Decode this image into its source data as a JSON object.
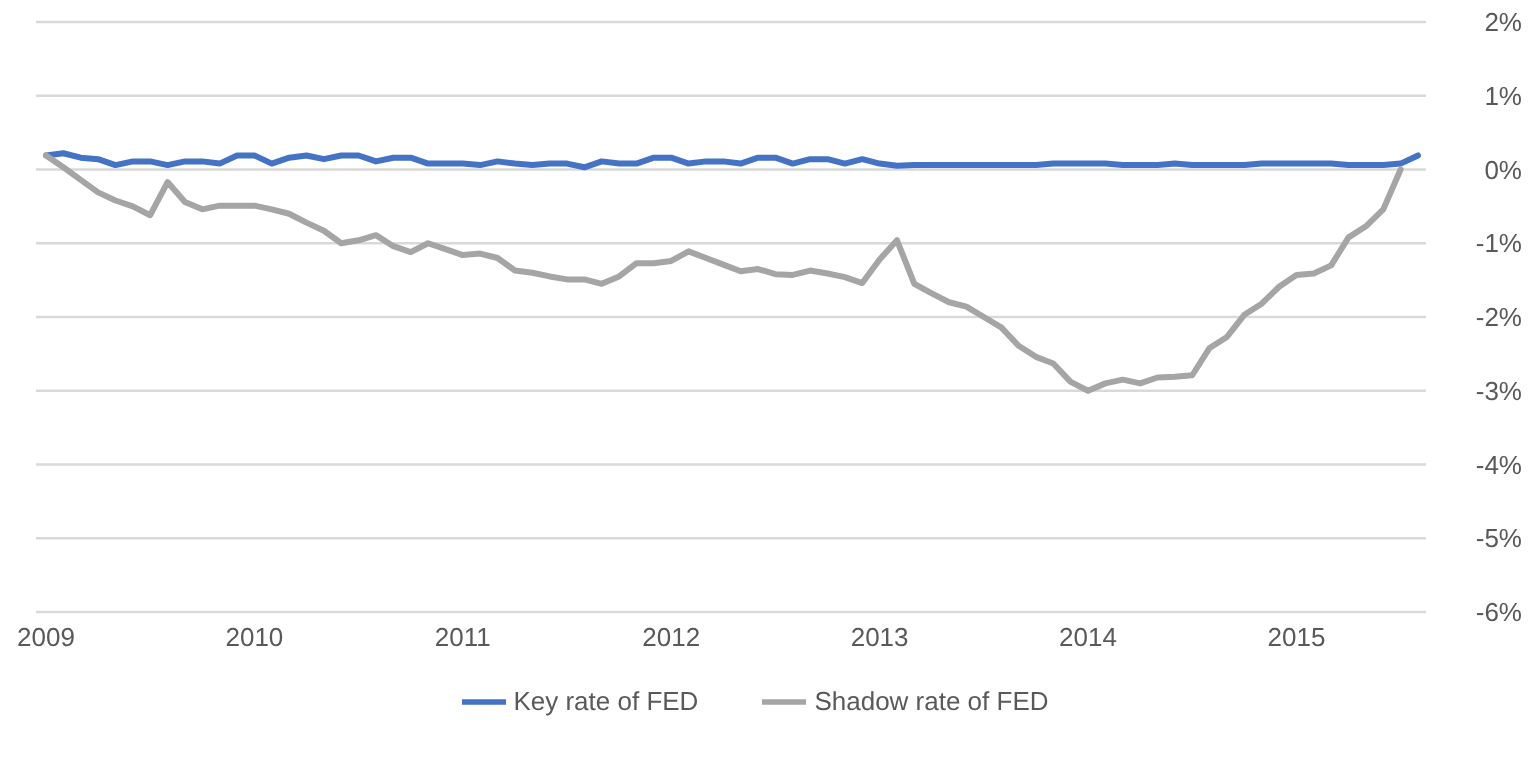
{
  "chart_data": {
    "type": "line",
    "categories": [
      "2009",
      null,
      null,
      null,
      null,
      null,
      null,
      null,
      null,
      null,
      null,
      null,
      "2010",
      null,
      null,
      null,
      null,
      null,
      null,
      null,
      null,
      null,
      null,
      null,
      "2011",
      null,
      null,
      null,
      null,
      null,
      null,
      null,
      null,
      null,
      null,
      null,
      "2012",
      null,
      null,
      null,
      null,
      null,
      null,
      null,
      null,
      null,
      null,
      null,
      "2013",
      null,
      null,
      null,
      null,
      null,
      null,
      null,
      null,
      null,
      null,
      null,
      "2014",
      null,
      null,
      null,
      null,
      null,
      null,
      null,
      null,
      null,
      null,
      null,
      "2015",
      null,
      null,
      null,
      null,
      null,
      null,
      null
    ],
    "series": [
      {
        "name": "Key rate of FED",
        "color": "#4472c4",
        "values": [
          0.19,
          0.22,
          0.16,
          0.14,
          0.06,
          0.11,
          0.11,
          0.06,
          0.11,
          0.11,
          0.08,
          0.19,
          0.19,
          0.08,
          0.16,
          0.19,
          0.14,
          0.19,
          0.19,
          0.11,
          0.16,
          0.16,
          0.08,
          0.08,
          0.08,
          0.06,
          0.11,
          0.08,
          0.06,
          0.08,
          0.08,
          0.03,
          0.11,
          0.08,
          0.08,
          0.16,
          0.16,
          0.08,
          0.11,
          0.11,
          0.08,
          0.16,
          0.16,
          0.08,
          0.14,
          0.14,
          0.08,
          0.14,
          0.08,
          0.05,
          0.06,
          0.06,
          0.06,
          0.06,
          0.06,
          0.06,
          0.06,
          0.06,
          0.08,
          0.08,
          0.08,
          0.08,
          0.06,
          0.06,
          0.06,
          0.08,
          0.06,
          0.06,
          0.06,
          0.06,
          0.08,
          0.08,
          0.08,
          0.08,
          0.08,
          0.06,
          0.06,
          0.06,
          0.08,
          0.19
        ]
      },
      {
        "name": "Shadow rate of FED",
        "color": "#a5a5a5",
        "values": [
          0.19,
          0.03,
          -0.14,
          -0.31,
          -0.42,
          -0.5,
          -0.62,
          -0.17,
          -0.44,
          -0.54,
          -0.49,
          -0.49,
          -0.49,
          -0.54,
          -0.6,
          -0.72,
          -0.83,
          -1.0,
          -0.96,
          -0.89,
          -1.04,
          -1.12,
          -1.0,
          -1.08,
          -1.16,
          -1.14,
          -1.2,
          -1.37,
          -1.4,
          -1.45,
          -1.49,
          -1.49,
          -1.55,
          -1.45,
          -1.27,
          -1.27,
          -1.24,
          -1.11,
          -1.2,
          -1.29,
          -1.38,
          -1.35,
          -1.42,
          -1.43,
          -1.37,
          -1.41,
          -1.46,
          -1.54,
          -1.22,
          -0.96,
          -1.55,
          -1.68,
          -1.8,
          -1.86,
          -2.0,
          -2.14,
          -2.39,
          -2.54,
          -2.63,
          -2.88,
          -3.0,
          -2.9,
          -2.85,
          -2.9,
          -2.82,
          -2.81,
          -2.79,
          -2.42,
          -2.27,
          -1.97,
          -1.82,
          -1.59,
          -1.43,
          -1.41,
          -1.3,
          -0.92,
          -0.77,
          -0.54,
          0.0,
          null
        ]
      }
    ],
    "ylim": [
      -6,
      2
    ],
    "yticks": [
      {
        "value": 2,
        "label": "2%"
      },
      {
        "value": 1,
        "label": "1%"
      },
      {
        "value": 0,
        "label": "0%"
      },
      {
        "value": -1,
        "label": "-1%"
      },
      {
        "value": -2,
        "label": "-2%"
      },
      {
        "value": -3,
        "label": "-3%"
      },
      {
        "value": -4,
        "label": "-4%"
      },
      {
        "value": -5,
        "label": "-5%"
      },
      {
        "value": -6,
        "label": "-6%"
      }
    ],
    "grid": "y",
    "legend": "bottom",
    "marker": "none",
    "line_style": "solid"
  }
}
